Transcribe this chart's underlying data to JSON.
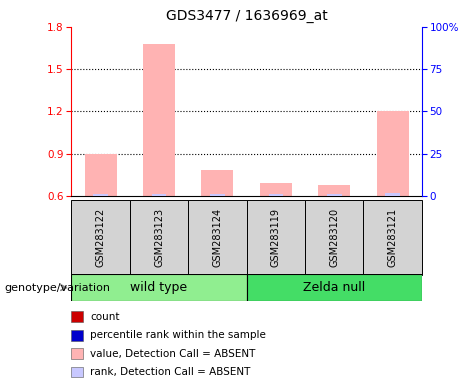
{
  "title": "GDS3477 / 1636969_at",
  "samples": [
    "GSM283122",
    "GSM283123",
    "GSM283124",
    "GSM283119",
    "GSM283120",
    "GSM283121"
  ],
  "values_absent": [
    0.9,
    1.68,
    0.78,
    0.69,
    0.68,
    1.2
  ],
  "ranks_absent": [
    0.615,
    0.615,
    0.615,
    0.615,
    0.615,
    0.618
  ],
  "bar_bottom": 0.6,
  "ylim_left": [
    0.6,
    1.8
  ],
  "ylim_right": [
    0,
    100
  ],
  "yticks_left": [
    0.6,
    0.9,
    1.2,
    1.5,
    1.8
  ],
  "yticks_right": [
    0,
    25,
    50,
    75,
    100
  ],
  "ytick_labels_right": [
    "0",
    "25",
    "50",
    "75",
    "100%"
  ],
  "hlines": [
    0.9,
    1.2,
    1.5
  ],
  "color_absent_value": "#ffb3b3",
  "color_absent_rank": "#c8c8ff",
  "color_count": "#cc0000",
  "color_rank_dark": "#0000cc",
  "legend_items": [
    {
      "label": "count",
      "color": "#cc0000"
    },
    {
      "label": "percentile rank within the sample",
      "color": "#0000cc"
    },
    {
      "label": "value, Detection Call = ABSENT",
      "color": "#ffb3b3"
    },
    {
      "label": "rank, Detection Call = ABSENT",
      "color": "#c8c8ff"
    }
  ],
  "bar_width": 0.55,
  "rank_bar_width": 0.25,
  "group_label": "genotype/variation",
  "wild_type_color": "#90ee90",
  "zelda_color": "#44dd66",
  "sample_box_color": "#d3d3d3",
  "title_fontsize": 10,
  "tick_fontsize": 7.5,
  "sample_fontsize": 7,
  "group_fontsize": 9,
  "legend_fontsize": 7.5,
  "geno_fontsize": 8
}
